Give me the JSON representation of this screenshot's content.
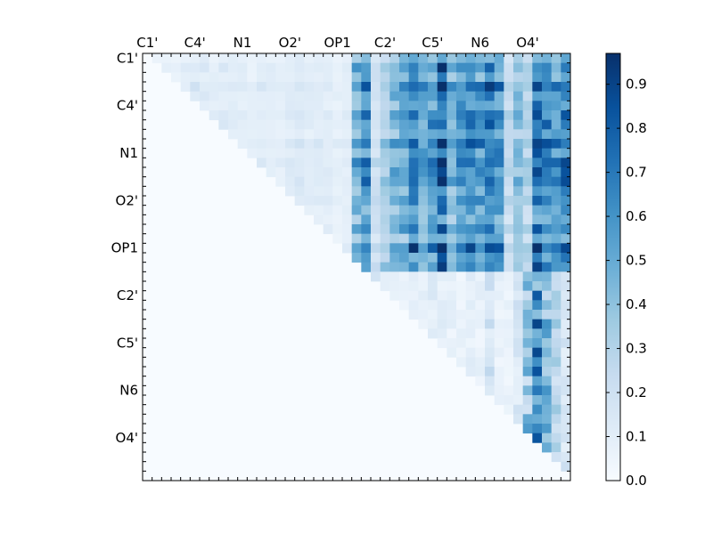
{
  "chart_data": {
    "type": "heatmap",
    "title": "",
    "xlabel": "",
    "ylabel": "",
    "labels": [
      "C1'",
      "C4'",
      "N1",
      "O2'",
      "OP1",
      "C2'",
      "C5'",
      "N6",
      "O4'"
    ],
    "label_every": 5,
    "n": 45,
    "colorbar": {
      "vmin": 0.0,
      "vmax": 0.97,
      "ticks": [
        "0.0",
        "0.1",
        "0.2",
        "0.3",
        "0.4",
        "0.5",
        "0.6",
        "0.7",
        "0.8",
        "0.9"
      ],
      "colormap": "Blues"
    },
    "column_weights": [
      0.1,
      0.12,
      0.14,
      0.1,
      0.13,
      0.18,
      0.16,
      0.12,
      0.15,
      0.14,
      0.12,
      0.1,
      0.14,
      0.13,
      0.11,
      0.15,
      0.16,
      0.12,
      0.14,
      0.13,
      0.11,
      0.12,
      0.6,
      0.72,
      0.25,
      0.4,
      0.55,
      0.62,
      0.78,
      0.6,
      0.7,
      0.92,
      0.55,
      0.7,
      0.75,
      0.68,
      0.8,
      0.72,
      0.3,
      0.48,
      0.35,
      0.86,
      0.76,
      0.66,
      0.8
    ],
    "row_weights": [
      0.6,
      0.85,
      0.7,
      0.95,
      0.8,
      0.75,
      0.9,
      0.85,
      0.7,
      1.0,
      0.8,
      0.95,
      0.85,
      0.9,
      0.75,
      0.85,
      0.7,
      0.65,
      0.8,
      0.6,
      1.0,
      0.75,
      0.85,
      0.7,
      0.95,
      0.4,
      0.35,
      0.3,
      0.45,
      0.3,
      0.35,
      0.4,
      0.3,
      0.35,
      0.3,
      0.35,
      0.25,
      0.3,
      0.35,
      0.3,
      0.35,
      0.3,
      0.35,
      0.25,
      0.2
    ],
    "lower_block_column_weights": [
      0.12,
      0.1,
      0.25,
      0.15,
      0.1,
      0.12,
      0.14,
      0.12,
      0.2,
      0.15,
      0.12,
      0.1,
      0.14,
      0.12,
      0.3,
      0.12,
      0.1,
      0.25,
      0.4,
      0.65,
      0.45,
      0.3,
      0.15
    ]
  }
}
